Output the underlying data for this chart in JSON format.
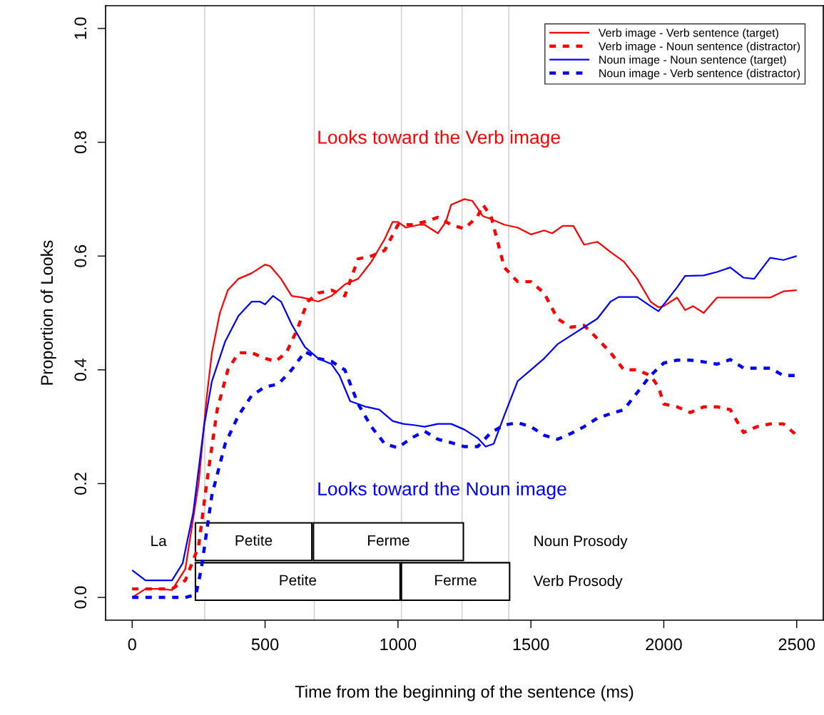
{
  "chart_data": {
    "type": "line",
    "xlabel": "Time from the beginning of the sentence (ms)",
    "ylabel": "Proportion of Looks",
    "xlim": [
      -100,
      2600
    ],
    "ylim": [
      -0.04,
      1.04
    ],
    "xticks": [
      0,
      500,
      1000,
      1500,
      2000,
      2500
    ],
    "yticks": [
      {
        "value": 0,
        "label": "0.0"
      },
      {
        "value": 0.2,
        "label": "0.2"
      },
      {
        "value": 0.4,
        "label": "0.4"
      },
      {
        "value": 0.6,
        "label": "0.6"
      },
      {
        "value": 0.8,
        "label": "0.8"
      },
      {
        "value": 1.0,
        "label": "1.0"
      }
    ],
    "grid": false,
    "legend": "top right",
    "marker": "none",
    "series": [
      {
        "name": "Verb image - Verb sentence (target)",
        "color": "#ff0000",
        "line_style": "solid",
        "x": [
          0,
          50,
          100,
          150,
          200,
          250,
          280,
          300,
          330,
          360,
          400,
          450,
          500,
          520,
          560,
          600,
          640,
          660,
          700,
          750,
          800,
          850,
          900,
          950,
          980,
          1000,
          1030,
          1080,
          1100,
          1150,
          1180,
          1200,
          1250,
          1280,
          1320,
          1350,
          1400,
          1450,
          1500,
          1550,
          1580,
          1620,
          1660,
          1700,
          1750,
          1800,
          1850,
          1900,
          1950,
          1980,
          2000,
          2050,
          2080,
          2110,
          2150,
          2200,
          2300,
          2400,
          2450,
          2500
        ],
        "values": [
          0.0,
          0.015,
          0.015,
          0.013,
          0.05,
          0.2,
          0.35,
          0.43,
          0.5,
          0.54,
          0.56,
          0.57,
          0.585,
          0.582,
          0.56,
          0.53,
          0.527,
          0.525,
          0.52,
          0.53,
          0.55,
          0.56,
          0.59,
          0.63,
          0.66,
          0.66,
          0.65,
          0.655,
          0.655,
          0.64,
          0.66,
          0.69,
          0.7,
          0.697,
          0.67,
          0.665,
          0.655,
          0.65,
          0.638,
          0.645,
          0.64,
          0.653,
          0.653,
          0.62,
          0.625,
          0.607,
          0.59,
          0.56,
          0.52,
          0.51,
          0.512,
          0.527,
          0.505,
          0.512,
          0.5,
          0.527,
          0.527,
          0.527,
          0.538,
          0.54
        ]
      },
      {
        "name": "Verb image - Noun sentence (distractor)",
        "color": "#ff0000",
        "line_style": "dotted",
        "x": [
          0,
          150,
          200,
          250,
          280,
          320,
          360,
          400,
          450,
          500,
          540,
          580,
          620,
          660,
          700,
          750,
          800,
          850,
          900,
          950,
          1000,
          1050,
          1100,
          1150,
          1200,
          1250,
          1300,
          1320,
          1350,
          1400,
          1450,
          1500,
          1550,
          1600,
          1650,
          1700,
          1750,
          1800,
          1850,
          1900,
          1950,
          1980,
          2000,
          2050,
          2100,
          2150,
          2200,
          2250,
          2300,
          2350,
          2400,
          2450,
          2500
        ],
        "values": [
          0.015,
          0.015,
          0.03,
          0.09,
          0.2,
          0.33,
          0.4,
          0.43,
          0.43,
          0.42,
          0.415,
          0.43,
          0.47,
          0.52,
          0.535,
          0.54,
          0.53,
          0.595,
          0.6,
          0.61,
          0.655,
          0.655,
          0.66,
          0.668,
          0.655,
          0.648,
          0.67,
          0.69,
          0.67,
          0.58,
          0.555,
          0.555,
          0.535,
          0.49,
          0.475,
          0.478,
          0.455,
          0.43,
          0.4,
          0.4,
          0.39,
          0.37,
          0.34,
          0.335,
          0.325,
          0.335,
          0.335,
          0.33,
          0.29,
          0.3,
          0.305,
          0.305,
          0.285
        ]
      },
      {
        "name": "Noun image - Noun sentence (target)",
        "color": "#0000ff",
        "line_style": "solid",
        "x": [
          0,
          50,
          100,
          150,
          190,
          230,
          270,
          300,
          350,
          400,
          450,
          480,
          500,
          530,
          560,
          600,
          650,
          700,
          750,
          780,
          820,
          880,
          930,
          980,
          1020,
          1060,
          1100,
          1150,
          1200,
          1250,
          1300,
          1330,
          1360,
          1400,
          1450,
          1500,
          1550,
          1600,
          1650,
          1700,
          1750,
          1800,
          1830,
          1900,
          1950,
          1980,
          2050,
          2080,
          2150,
          2200,
          2250,
          2300,
          2340,
          2400,
          2450,
          2500
        ],
        "values": [
          0.048,
          0.03,
          0.03,
          0.03,
          0.06,
          0.15,
          0.3,
          0.38,
          0.45,
          0.495,
          0.52,
          0.52,
          0.515,
          0.53,
          0.52,
          0.48,
          0.44,
          0.42,
          0.41,
          0.39,
          0.345,
          0.335,
          0.33,
          0.31,
          0.305,
          0.303,
          0.3,
          0.305,
          0.305,
          0.295,
          0.28,
          0.265,
          0.27,
          0.32,
          0.38,
          0.4,
          0.42,
          0.445,
          0.46,
          0.475,
          0.49,
          0.52,
          0.528,
          0.528,
          0.512,
          0.503,
          0.545,
          0.565,
          0.566,
          0.572,
          0.58,
          0.562,
          0.56,
          0.597,
          0.593,
          0.6
        ]
      },
      {
        "name": "Noun image - Verb sentence (distractor)",
        "color": "#0000ff",
        "line_style": "dotted",
        "x": [
          0,
          200,
          240,
          260,
          300,
          350,
          400,
          450,
          500,
          550,
          600,
          650,
          700,
          750,
          800,
          850,
          900,
          950,
          1000,
          1050,
          1100,
          1150,
          1200,
          1250,
          1300,
          1350,
          1400,
          1450,
          1500,
          1550,
          1600,
          1650,
          1700,
          1750,
          1800,
          1850,
          1900,
          1950,
          2000,
          2050,
          2100,
          2150,
          2200,
          2250,
          2300,
          2400,
          2450,
          2500
        ],
        "values": [
          0.0,
          0.0,
          0.005,
          0.05,
          0.18,
          0.27,
          0.32,
          0.355,
          0.37,
          0.375,
          0.4,
          0.432,
          0.42,
          0.415,
          0.4,
          0.34,
          0.3,
          0.27,
          0.263,
          0.28,
          0.292,
          0.278,
          0.272,
          0.265,
          0.265,
          0.29,
          0.303,
          0.307,
          0.3,
          0.285,
          0.278,
          0.288,
          0.3,
          0.315,
          0.323,
          0.33,
          0.36,
          0.39,
          0.412,
          0.417,
          0.417,
          0.414,
          0.41,
          0.418,
          0.403,
          0.403,
          0.39,
          0.39
        ]
      }
    ],
    "ref_lines": [
      {
        "axis": "x",
        "value": 273,
        "color": "#d3d3d3"
      },
      {
        "axis": "x",
        "value": 685,
        "color": "#d3d3d3"
      },
      {
        "axis": "x",
        "value": 1013,
        "color": "#d3d3d3"
      },
      {
        "axis": "x",
        "value": 1241,
        "color": "#d3d3d3"
      },
      {
        "axis": "x",
        "value": 1417,
        "color": "#d3d3d3"
      }
    ],
    "bands": [
      {
        "axis": "x",
        "from": 238,
        "to": 676,
        "label": "Petite",
        "color": "#ffffff"
      },
      {
        "axis": "x",
        "from": 682,
        "to": 1246,
        "label": "Ferme",
        "color": "#ffffff"
      },
      {
        "axis": "x",
        "from": 238,
        "to": 1008,
        "label": "Petite",
        "color": "#ffffff"
      },
      {
        "axis": "x",
        "from": 1013,
        "to": 1420,
        "label": "Ferme",
        "color": "#ffffff"
      }
    ],
    "annotations": [
      {
        "text": "Looks toward the Verb image",
        "x": 695,
        "y": 0.806
      },
      {
        "text": "Looks toward the Noun image",
        "x": 695,
        "y": 0.188
      },
      "La",
      "Noun Prosody",
      "Verb Prosody"
    ]
  }
}
